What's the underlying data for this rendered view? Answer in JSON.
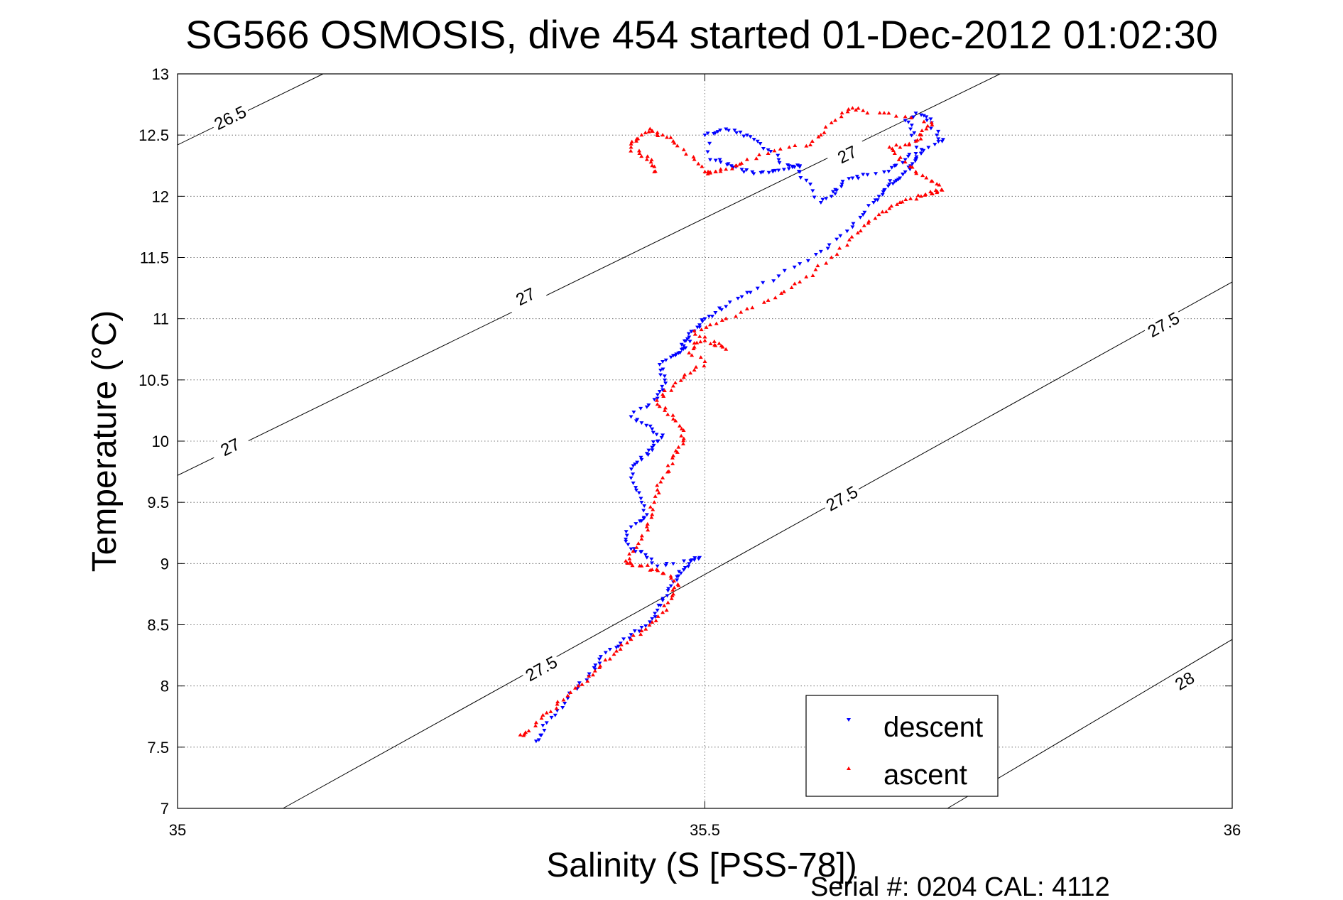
{
  "chart_data": {
    "type": "scatter",
    "title": "SG566 OSMOSIS, dive 454 started 01-Dec-2012 01:02:30",
    "xlabel": "Salinity (S [PSS-78])",
    "ylabel": "Temperature (°C)",
    "xlim": [
      35,
      36
    ],
    "ylim": [
      7,
      13
    ],
    "x_ticks": [
      35,
      35.5,
      36
    ],
    "x_tick_labels": [
      "35",
      "35.5",
      "36"
    ],
    "y_ticks": [
      7,
      7.5,
      8,
      8.5,
      9,
      9.5,
      10,
      10.5,
      11,
      11.5,
      12,
      12.5,
      13
    ],
    "y_tick_labels": [
      "7",
      "7.5",
      "8",
      "8.5",
      "9",
      "9.5",
      "10",
      "10.5",
      "11",
      "11.5",
      "12",
      "12.5",
      "13"
    ],
    "grid": true,
    "legend_position": "bottom-right",
    "footer": "Serial #: 0204  CAL: 4112",
    "density_contours": [
      {
        "level": "26.5",
        "points": [
          [
            35.0,
            12.42
          ],
          [
            35.138,
            13.0
          ]
        ],
        "labels": [
          {
            "text": "26.5",
            "x": 35.05,
            "y": 12.64
          }
        ]
      },
      {
        "level": "27",
        "points": [
          [
            35.0,
            9.72
          ],
          [
            35.78,
            13.0
          ]
        ],
        "labels": [
          {
            "text": "27",
            "x": 35.05,
            "y": 9.95
          },
          {
            "text": "27",
            "x": 35.33,
            "y": 11.18
          },
          {
            "text": "27",
            "x": 35.635,
            "y": 12.34
          }
        ]
      },
      {
        "level": "27.5",
        "points": [
          [
            35.1,
            7.0
          ],
          [
            36.0,
            11.3
          ]
        ],
        "labels": [
          {
            "text": "27.5",
            "x": 35.345,
            "y": 8.14
          },
          {
            "text": "27.5",
            "x": 35.63,
            "y": 9.53
          },
          {
            "text": "27.5",
            "x": 35.935,
            "y": 10.95
          }
        ]
      },
      {
        "level": "28",
        "points": [
          [
            35.73,
            7.0
          ],
          [
            36.0,
            8.38
          ]
        ],
        "labels": [
          {
            "text": "28",
            "x": 35.955,
            "y": 8.04
          }
        ]
      }
    ],
    "series": [
      {
        "name": "descent",
        "color": "#0000ff",
        "marker": "triangle-down",
        "x": [
          35.34,
          35.345,
          35.35,
          35.36,
          35.37,
          35.38,
          35.39,
          35.395,
          35.4,
          35.41,
          35.42,
          35.43,
          35.44,
          35.45,
          35.455,
          35.46,
          35.465,
          35.47,
          35.475,
          35.48,
          35.485,
          35.49,
          35.495,
          35.47,
          35.455,
          35.445,
          35.44,
          35.43,
          35.425,
          35.43,
          35.44,
          35.445,
          35.44,
          35.435,
          35.43,
          35.432,
          35.44,
          35.445,
          35.45,
          35.455,
          35.46,
          35.45,
          35.44,
          35.43,
          35.445,
          35.455,
          35.46,
          35.462,
          35.458,
          35.46,
          35.47,
          35.475,
          35.478,
          35.48,
          35.482,
          35.485,
          35.49,
          35.495,
          35.5,
          35.51,
          35.52,
          35.535,
          35.55,
          35.57,
          35.59,
          35.61,
          35.625,
          35.64,
          35.65,
          35.66,
          35.665,
          35.67,
          35.675,
          35.68,
          35.685,
          35.69,
          35.695,
          35.7,
          35.705,
          35.7,
          35.695,
          35.69,
          35.7,
          35.71,
          35.715,
          35.72,
          35.725,
          35.712,
          35.7,
          35.69,
          35.68,
          35.67,
          35.65,
          35.64,
          35.63,
          35.625,
          35.62,
          35.61,
          35.6,
          35.59,
          35.58,
          35.57,
          35.56,
          35.55,
          35.54,
          35.53,
          35.52,
          35.51,
          35.5,
          35.505,
          35.515,
          35.525,
          35.535,
          35.545,
          35.555,
          35.565,
          35.575,
          35.585,
          35.59
        ],
        "y": [
          7.55,
          7.6,
          7.7,
          7.8,
          7.9,
          8.0,
          8.08,
          8.15,
          8.22,
          8.3,
          8.35,
          8.42,
          8.48,
          8.55,
          8.62,
          8.7,
          8.78,
          8.85,
          8.9,
          8.95,
          9.0,
          9.03,
          9.05,
          9.0,
          8.98,
          9.05,
          9.1,
          9.12,
          9.2,
          9.3,
          9.35,
          9.4,
          9.5,
          9.6,
          9.7,
          9.8,
          9.85,
          9.9,
          9.95,
          10.0,
          10.05,
          10.1,
          10.15,
          10.2,
          10.28,
          10.35,
          10.42,
          10.5,
          10.58,
          10.65,
          10.7,
          10.72,
          10.75,
          10.78,
          10.82,
          10.85,
          10.9,
          10.95,
          11.0,
          11.05,
          11.1,
          11.18,
          11.25,
          11.35,
          11.45,
          11.55,
          11.65,
          11.75,
          11.85,
          11.95,
          12.0,
          12.05,
          12.1,
          12.12,
          12.15,
          12.2,
          12.25,
          12.3,
          12.35,
          12.45,
          12.55,
          12.62,
          12.68,
          12.65,
          12.6,
          12.5,
          12.45,
          12.4,
          12.35,
          12.3,
          12.25,
          12.2,
          12.18,
          12.15,
          12.1,
          12.05,
          12.0,
          11.95,
          12.1,
          12.2,
          12.25,
          12.3,
          12.38,
          12.45,
          12.5,
          12.52,
          12.55,
          12.52,
          12.5,
          12.3,
          12.28,
          12.25,
          12.22,
          12.2,
          12.2,
          12.21,
          12.22,
          12.24,
          12.25
        ]
      },
      {
        "name": "ascent",
        "color": "#ff0000",
        "marker": "triangle-up",
        "x": [
          35.325,
          35.33,
          35.34,
          35.35,
          35.36,
          35.37,
          35.38,
          35.39,
          35.4,
          35.41,
          35.42,
          35.43,
          35.44,
          35.45,
          35.46,
          35.465,
          35.47,
          35.475,
          35.468,
          35.46,
          35.45,
          35.44,
          35.43,
          35.425,
          35.432,
          35.44,
          35.445,
          35.45,
          35.452,
          35.455,
          35.46,
          35.465,
          35.47,
          35.475,
          35.48,
          35.478,
          35.47,
          35.462,
          35.455,
          35.46,
          35.47,
          35.48,
          35.49,
          35.5,
          35.485,
          35.49,
          35.5,
          35.51,
          35.52,
          35.5,
          35.49,
          35.505,
          35.52,
          35.54,
          35.56,
          35.575,
          35.59,
          35.605,
          35.62,
          35.635,
          35.645,
          35.655,
          35.665,
          35.675,
          35.685,
          35.695,
          35.705,
          35.715,
          35.72,
          35.725,
          35.72,
          35.71,
          35.7,
          35.69,
          35.68,
          35.675,
          35.69,
          35.7,
          35.705,
          35.71,
          35.715,
          35.69,
          35.67,
          35.65,
          35.64,
          35.63,
          35.62,
          35.61,
          35.6,
          35.58,
          35.56,
          35.54,
          35.53,
          35.52,
          35.51,
          35.505,
          35.5,
          35.49,
          35.48,
          35.47,
          35.46,
          35.455,
          35.448,
          35.44,
          35.435,
          35.43,
          35.438,
          35.445,
          35.45,
          35.452
        ],
        "y": [
          7.6,
          7.62,
          7.7,
          7.78,
          7.85,
          7.92,
          8.0,
          8.08,
          8.15,
          8.22,
          8.3,
          8.38,
          8.45,
          8.52,
          8.6,
          8.68,
          8.75,
          8.82,
          8.88,
          8.92,
          8.95,
          8.98,
          9.0,
          9.02,
          9.1,
          9.2,
          9.3,
          9.4,
          9.5,
          9.6,
          9.7,
          9.8,
          9.88,
          9.95,
          10.02,
          10.1,
          10.18,
          10.25,
          10.3,
          10.38,
          10.45,
          10.52,
          10.58,
          10.65,
          10.72,
          10.8,
          10.82,
          10.78,
          10.75,
          10.85,
          10.9,
          10.95,
          11.0,
          11.08,
          11.15,
          11.22,
          11.3,
          11.4,
          11.5,
          11.6,
          11.7,
          11.78,
          11.85,
          11.9,
          11.95,
          11.98,
          12.0,
          12.02,
          12.03,
          12.05,
          12.1,
          12.15,
          12.2,
          12.28,
          12.35,
          12.4,
          12.42,
          12.45,
          12.5,
          12.55,
          12.6,
          12.65,
          12.68,
          12.7,
          12.72,
          12.68,
          12.6,
          12.5,
          12.42,
          12.4,
          12.35,
          12.3,
          12.25,
          12.22,
          12.2,
          12.19,
          12.2,
          12.3,
          12.38,
          12.45,
          12.5,
          12.52,
          12.55,
          12.5,
          12.45,
          12.4,
          12.35,
          12.3,
          12.25,
          12.2
        ]
      }
    ]
  }
}
